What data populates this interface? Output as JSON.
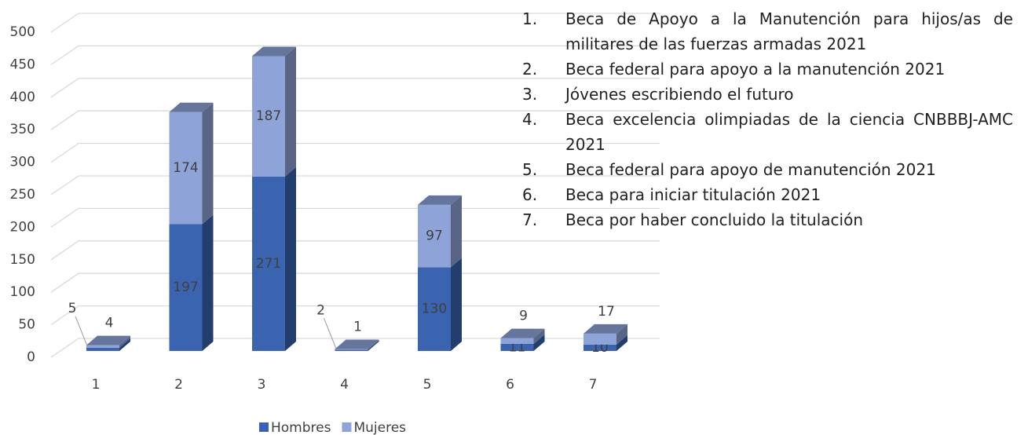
{
  "chart_data": {
    "type": "bar3d_stacked",
    "categories": [
      "1",
      "2",
      "3",
      "4",
      "5",
      "6",
      "7"
    ],
    "series": [
      {
        "name": "Hombres",
        "color": "#3a63b0",
        "values": [
          5,
          197,
          271,
          2,
          130,
          11,
          10
        ]
      },
      {
        "name": "Mujeres",
        "color": "#8ea3d8",
        "values": [
          4,
          174,
          187,
          1,
          97,
          9,
          17
        ]
      }
    ],
    "ylim": [
      0,
      500
    ],
    "yticks": [
      0,
      50,
      100,
      150,
      200,
      250,
      300,
      350,
      400,
      450,
      500
    ],
    "grid": true,
    "legend": "bottom",
    "notes": [
      {
        "marker": "1.",
        "text": "Beca de Apoyo a la Manutención para hijos/as de militares de las fuerzas armadas 2021"
      },
      {
        "marker": "2.",
        "text": "Beca federal para apoyo a la manutención 2021"
      },
      {
        "marker": "3.",
        "text": "Jóvenes escribiendo el futuro"
      },
      {
        "marker": "4.",
        "text": "Beca excelencia olimpiadas de la ciencia CNBBBJ-AMC 2021"
      },
      {
        "marker": "5.",
        "text": "Beca federal para apoyo de manutención 2021"
      },
      {
        "marker": "6.",
        "text": "Beca para iniciar titulación 2021"
      },
      {
        "marker": "7.",
        "text": "Beca por haber concluido la titulación"
      }
    ]
  }
}
